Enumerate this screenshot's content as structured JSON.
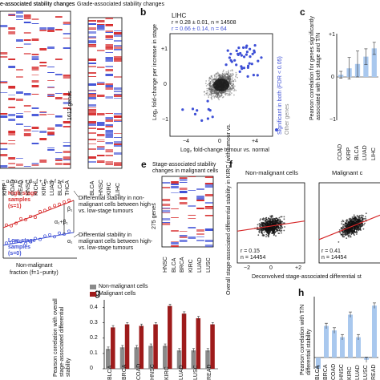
{
  "panels": {
    "a": {
      "title_left": "e-associated stability changes",
      "title_right": "Grade-associated stability changes",
      "genes_label": "1612 genes",
      "left_cols": [
        "KIRP",
        "COAD",
        "READ",
        "HNSC",
        "KICH",
        "KIRC",
        "LUAD",
        "BLCA",
        "THCA"
      ],
      "right_cols": [
        "BLCA",
        "HNSC",
        "KIRC",
        "LIHC"
      ]
    },
    "b": {
      "letter": "b",
      "cancer": "LIHC",
      "stat1": "r = 0.28 ± 0.01, n = 14508",
      "stat2": "r = 0.66 ± 0.14, n = 64",
      "ylabel": "Log₂ fold-change per increase in stage",
      "xlabel": "Log₂ fold-change tumour vs. normal",
      "legend_sig": "Significant in both (FDR < 0.05)",
      "legend_other": "Other genes",
      "xticks": [
        "−4",
        "0",
        "+4"
      ],
      "yticks": [
        "+1",
        "0",
        "−1"
      ]
    },
    "c": {
      "letter": "c",
      "ylabel": "Pearson correlation for genes significantly associated with both stage and T/N",
      "yticks": [
        "+1",
        "0",
        "−1"
      ],
      "categories": [
        "COAD",
        "KIRP",
        "BLCA",
        "LUAD",
        "LIHC"
      ]
    },
    "d": {
      "eq1": "− α₀+α₁·s + β₀·f + β₁·s·f + ε",
      "high": "High-stage samples (s=1)",
      "low": "Low-stage samples (s=0)",
      "desc1": "Differential stability in non-malignant cells between high- vs. low-stage tumours",
      "desc2": "Differential stability in malignant cells between high- vs. low-stage tumours",
      "xlabel1": "Non-malignant",
      "xlabel2": "fraction (f=1−purity)",
      "beta": "β₁",
      "alpha1b1": "α₁+β₁",
      "alpha1": "α₁"
    },
    "e": {
      "letter": "e",
      "title1": "Stage-associated stability",
      "title2": "changes in malignant cells",
      "genes_label": "275 genes",
      "cols": [
        "HNSC",
        "BLCA",
        "BRCA",
        "KIRC",
        "LUAD",
        "LUSC"
      ]
    },
    "f": {
      "letter": "f",
      "title_left": "Non-malignant cells",
      "title_right": "Malignant c",
      "ylabel": "Overall stage-associated differential stability in KIRC (with tumour vs.",
      "xlabel": "Deconvolved stage-associated differential st",
      "r_left": "r = 0.15",
      "n_left": "n = 14454",
      "r_right": "r = 0.41",
      "n_right": "n = 14454",
      "xticks": [
        "−2",
        "0",
        "+2"
      ]
    },
    "g": {
      "letter": "g",
      "legend": [
        "Non-malignant cells",
        "Malignant cells"
      ],
      "ylabel": "Pearson correlation with overall stage-associated differential stability",
      "yticks": [
        "0.4",
        "0.3",
        "0.2",
        "0.1",
        "0"
      ],
      "categories": [
        "BLCA",
        "BRCA",
        "COAD",
        "HNSC",
        "KIRC",
        "LUAD",
        "LUSC",
        "READ"
      ]
    },
    "h": {
      "letter": "h",
      "ylabel": "Pearson correlation with T/N differential stability",
      "categories": [
        "BLCA",
        "BRCA",
        "COAD",
        "HNSC",
        "KIRC",
        "LUAD",
        "LUSC",
        "READ"
      ]
    }
  },
  "colors": {
    "red": "#d62728",
    "blue": "#3d4fd6",
    "darkred": "#9e1b1b",
    "grey": "#8a8a8a",
    "lightblue": "#a9c8ee"
  },
  "chart_data": [
    {
      "id": "c",
      "type": "bar",
      "categories": [
        "COAD",
        "KIRP",
        "BLCA",
        "LUAD",
        "LIHC"
      ],
      "values": [
        0.05,
        0.2,
        0.3,
        0.47,
        0.66
      ],
      "errors": [
        0.08,
        0.25,
        0.3,
        0.18,
        0.14
      ],
      "ylim": [
        -1,
        1
      ]
    },
    {
      "id": "g",
      "type": "bar",
      "categories": [
        "BLCA",
        "BRCA",
        "COAD",
        "HNSC",
        "KIRC",
        "LUAD",
        "LUSC",
        "READ"
      ],
      "series": [
        {
          "name": "Non-malignant cells",
          "values": [
            0.13,
            0.14,
            0.14,
            0.15,
            0.15,
            0.12,
            0.12,
            0.12
          ]
        },
        {
          "name": "Malignant cells",
          "values": [
            0.27,
            0.29,
            0.28,
            0.29,
            0.41,
            0.36,
            0.33,
            0.29
          ]
        }
      ],
      "ylim": [
        0,
        0.45
      ]
    },
    {
      "id": "h",
      "type": "bar",
      "categories": [
        "BLCA",
        "BRCA",
        "COAD",
        "HNSC",
        "KIRC",
        "LUAD",
        "LUSC",
        "READ"
      ],
      "values": [
        -0.05,
        0.14,
        0.12,
        0.09,
        0.19,
        0.09,
        -0.01,
        0.23
      ],
      "ylim": [
        -0.05,
        0.27
      ]
    }
  ]
}
